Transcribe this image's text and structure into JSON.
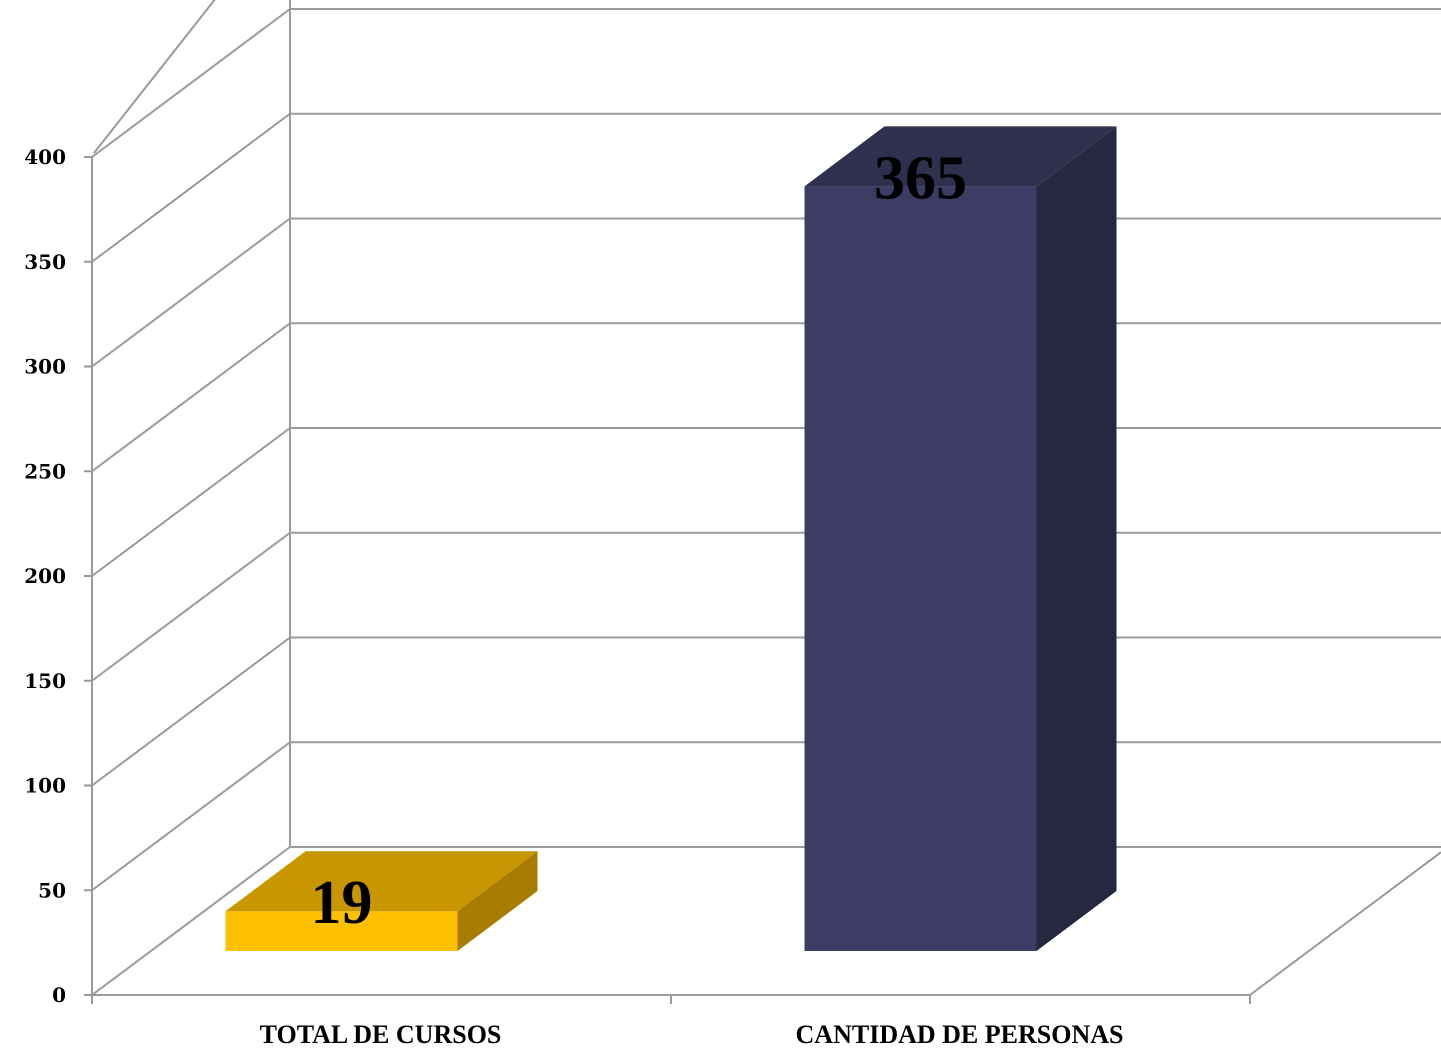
{
  "chart_data": {
    "type": "bar",
    "style": "3d-column",
    "title": "",
    "xlabel": "",
    "ylabel": "",
    "categories": [
      "TOTAL DE CURSOS",
      "CANTIDAD DE PERSONAS"
    ],
    "values": [
      19,
      365
    ],
    "data_labels": [
      "19",
      "365"
    ],
    "ylim": [
      0,
      400
    ],
    "yticks": [
      "0",
      "50",
      "100",
      "150",
      "200",
      "250",
      "300",
      "350",
      "400"
    ],
    "grid": true,
    "legend": "none",
    "colors": {
      "bars": [
        "#FFC000",
        "#3C3C64"
      ],
      "grid": "#9a9a9a"
    }
  }
}
